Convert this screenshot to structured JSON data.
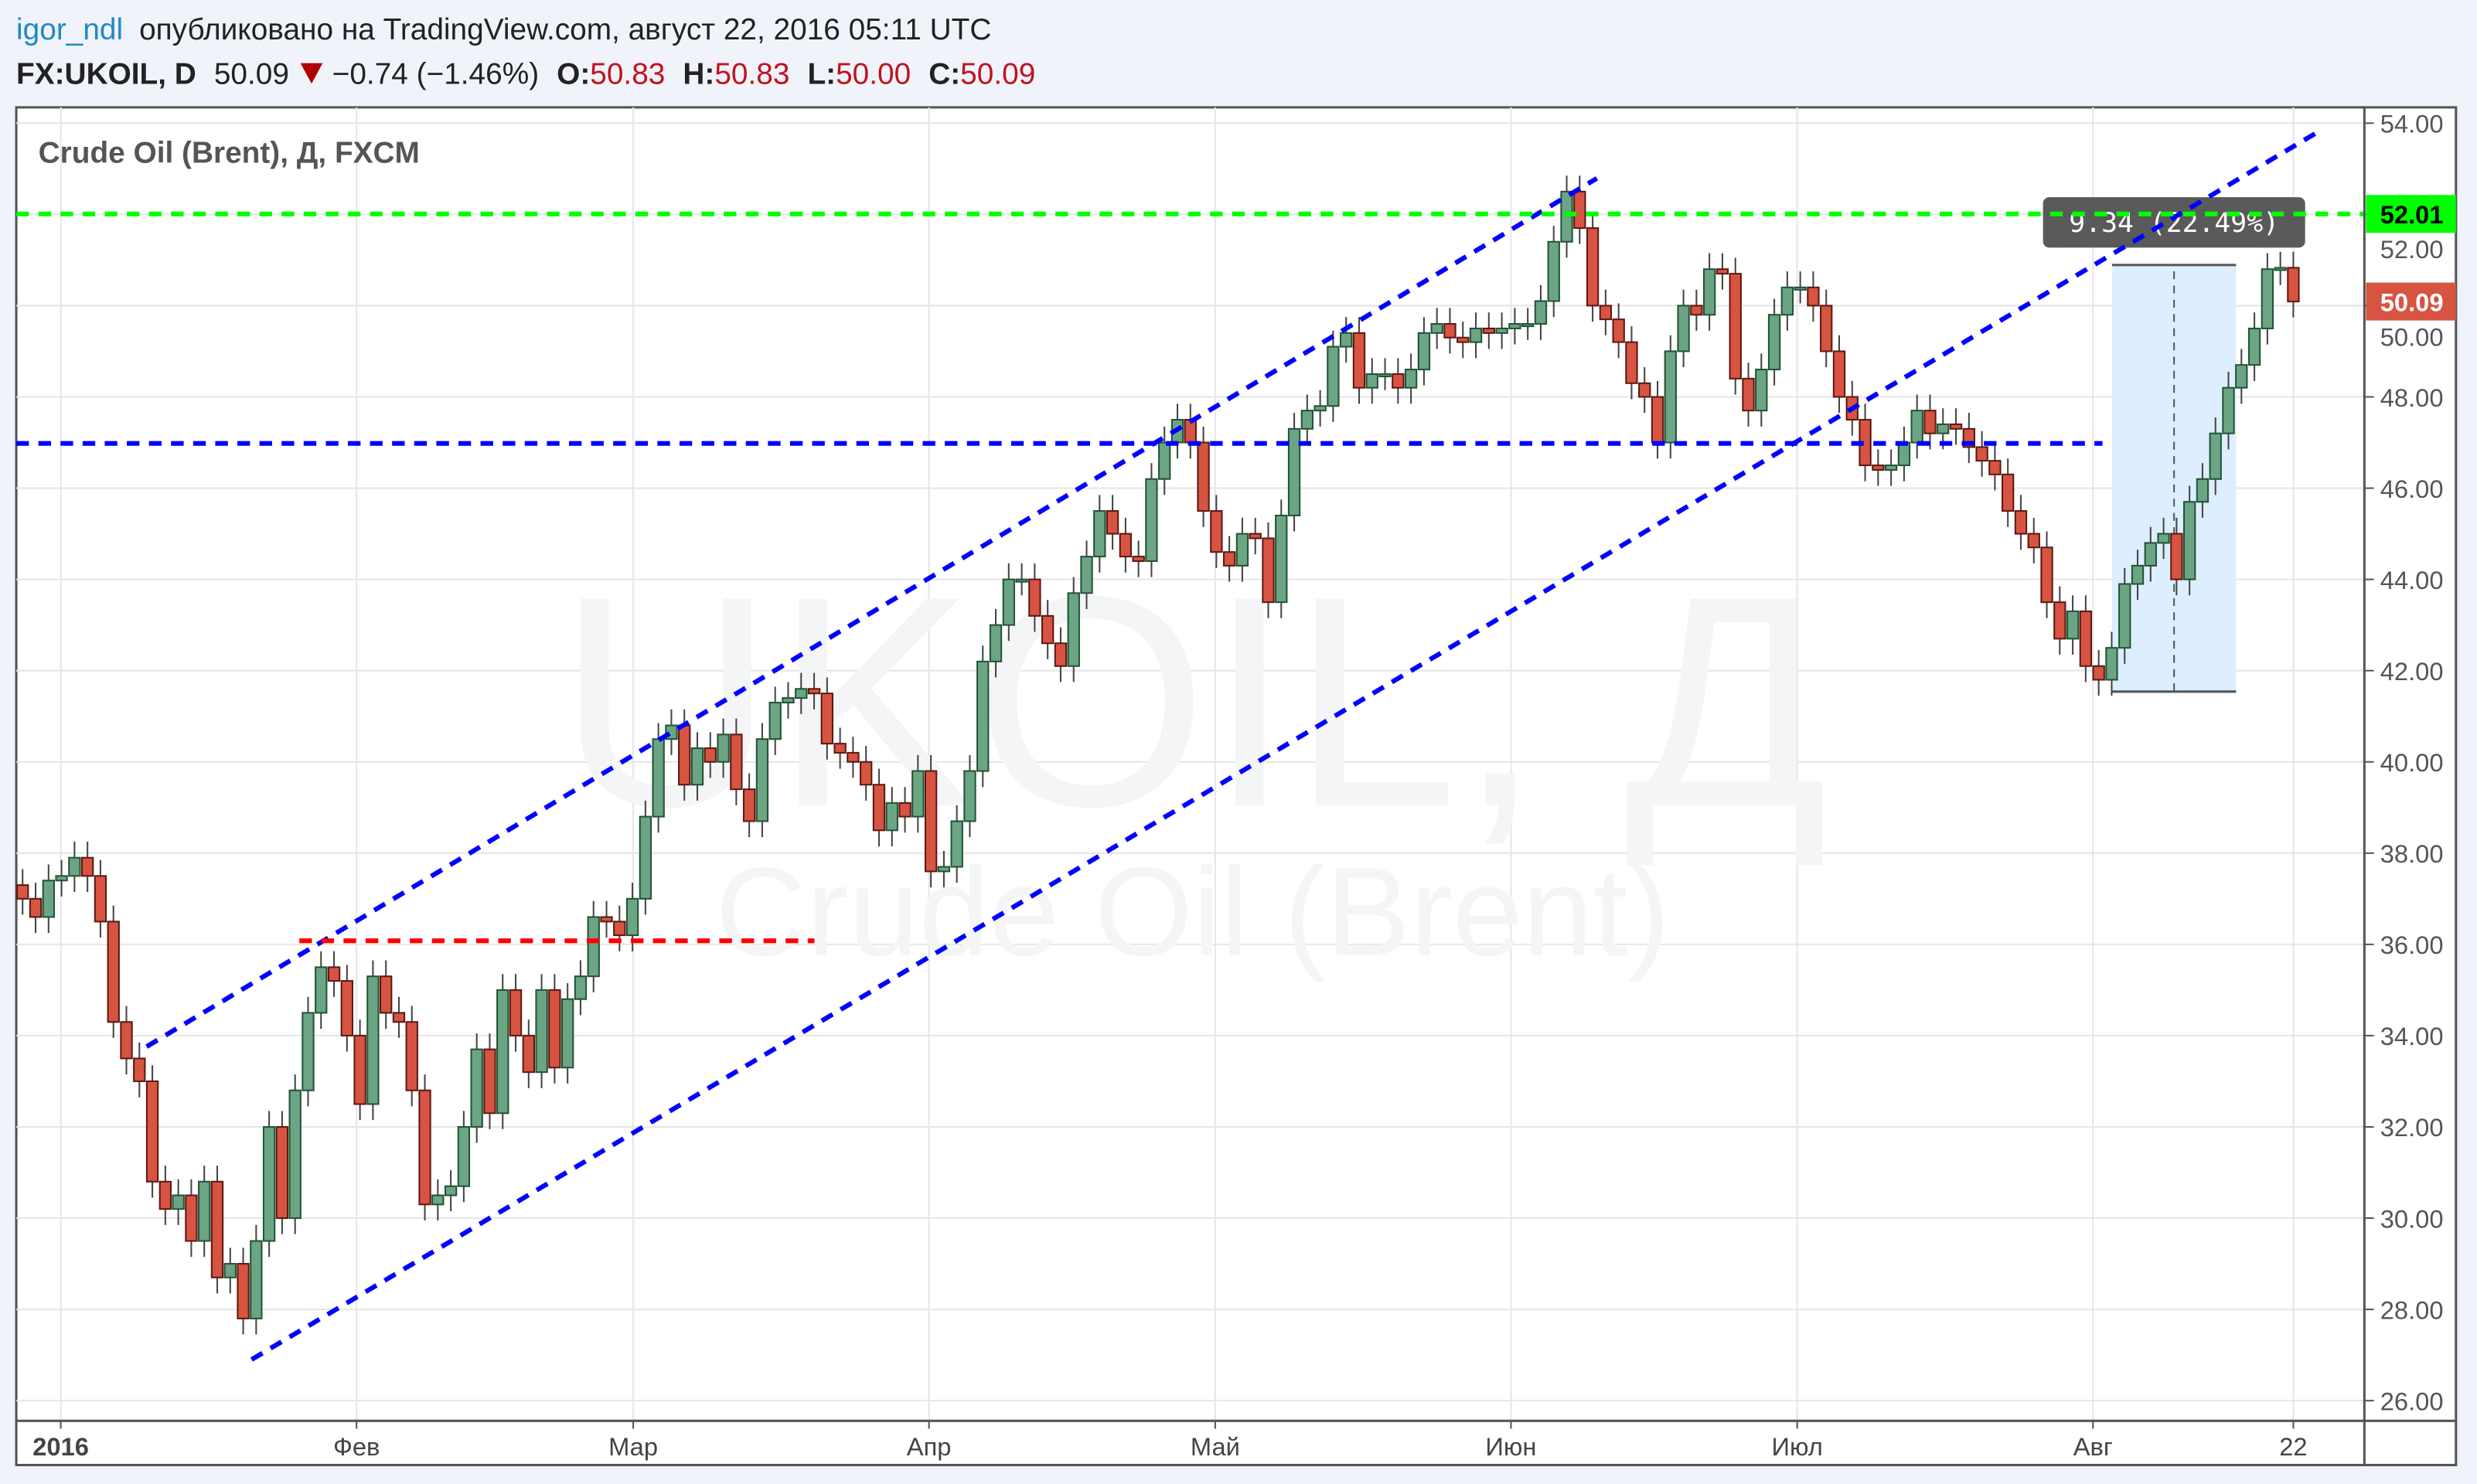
{
  "header": {
    "author": "igor_ndl",
    "published": "опубликовано на TradingView.com, август 22, 2016 05:11 UTC",
    "symbol": "FX:UKOIL, D",
    "last": "50.09",
    "change": "−0.74 (−1.46%)",
    "o_label": "O:",
    "o": "50.83",
    "h_label": "H:",
    "h": "50.83",
    "l_label": "L:",
    "l": "50.00",
    "c_label": "C:",
    "c": "50.09",
    "down_icon": "triangle-down-icon"
  },
  "colors": {
    "up": "#6ba583",
    "down": "#d75442",
    "accent_link": "#1e88c7",
    "value_red": "#c1121f",
    "green_line": "#00ff00",
    "blue_line": "#0000ff",
    "red_line": "#ff0000"
  },
  "chart_data": {
    "type": "candlestick",
    "title": "Crude Oil (Brent), Д, FXCM",
    "watermark": {
      "line1": "UKOIL, Д",
      "line2": "Crude Oil (Brent)"
    },
    "ylim": [
      25.6,
      54.2
    ],
    "xlim": [
      "2015-12-28",
      "2016-08-22"
    ],
    "grid": true,
    "y_ticks": [
      "26.00",
      "28.00",
      "30.00",
      "32.00",
      "34.00",
      "36.00",
      "38.00",
      "40.00",
      "42.00",
      "44.00",
      "46.00",
      "48.00",
      "50.00",
      "52.00",
      "54.00"
    ],
    "x_ticks": [
      {
        "label": "2016",
        "date": "2016-01-01"
      },
      {
        "label": "Фев",
        "date": "2016-02-01"
      },
      {
        "label": "Мар",
        "date": "2016-03-01"
      },
      {
        "label": "Апр",
        "date": "2016-04-01"
      },
      {
        "label": "Май",
        "date": "2016-05-01"
      },
      {
        "label": "Июн",
        "date": "2016-06-01"
      },
      {
        "label": "Июл",
        "date": "2016-07-01"
      },
      {
        "label": "Авг",
        "date": "2016-08-01"
      },
      {
        "label": "22",
        "date": "2016-08-22"
      }
    ],
    "closes": [
      37.0,
      36.6,
      37.4,
      37.5,
      37.9,
      37.5,
      36.5,
      34.3,
      33.5,
      33.0,
      30.8,
      30.2,
      30.5,
      29.5,
      30.8,
      28.7,
      29.0,
      27.8,
      29.5,
      32.0,
      30.0,
      32.8,
      34.5,
      35.5,
      35.2,
      34.0,
      32.5,
      35.3,
      34.5,
      34.3,
      32.8,
      30.3,
      30.5,
      30.7,
      32.0,
      33.7,
      32.3,
      35.0,
      34.0,
      33.2,
      35.0,
      33.3,
      34.8,
      35.3,
      36.6,
      36.5,
      36.2,
      37.0,
      38.8,
      40.5,
      40.8,
      39.5,
      40.3,
      40.0,
      40.6,
      39.4,
      38.7,
      40.5,
      41.3,
      41.4,
      41.6,
      41.5,
      40.4,
      40.2,
      40.0,
      39.5,
      38.5,
      39.1,
      38.8,
      39.8,
      37.6,
      37.7,
      38.7,
      39.8,
      42.2,
      43.0,
      44.0,
      44.0,
      43.2,
      42.6,
      42.1,
      43.7,
      44.5,
      45.5,
      45.0,
      44.5,
      44.4,
      46.2,
      47.0,
      47.5,
      47.0,
      45.5,
      44.6,
      44.3,
      45.0,
      44.9,
      43.5,
      45.4,
      47.3,
      47.7,
      47.8,
      49.1,
      49.4,
      48.2,
      48.5,
      48.5,
      48.2,
      48.6,
      49.4,
      49.6,
      49.3,
      49.2,
      49.5,
      49.4,
      49.5,
      49.6,
      49.6,
      50.1,
      51.4,
      52.5,
      51.7,
      50.0,
      49.7,
      49.2,
      48.3,
      48.0,
      47.0,
      49.0,
      50.0,
      49.8,
      50.8,
      50.7,
      48.4,
      47.7,
      48.6,
      49.8,
      50.4,
      50.4,
      50.0,
      49.0,
      48.0,
      47.5,
      46.5,
      46.4,
      46.5,
      47.0,
      47.7,
      47.2,
      47.4,
      47.3,
      46.9,
      46.6,
      46.3,
      45.5,
      45.0,
      44.7,
      43.5,
      42.7,
      43.3,
      42.1,
      41.8,
      42.5,
      43.9,
      44.3,
      44.8,
      45.0,
      44.0,
      45.7,
      46.2,
      47.2,
      48.2,
      48.7,
      49.5,
      50.8,
      50.83,
      50.09
    ],
    "drawings": [
      {
        "kind": "trend",
        "color": "#0000ff",
        "from": [
          "2016-01-10",
          33.76
        ],
        "to": [
          "2016-06-10",
          52.79
        ]
      },
      {
        "kind": "trend",
        "color": "#0000ff",
        "from": [
          "2016-01-21",
          26.9
        ],
        "to": [
          "2016-08-25",
          53.86
        ]
      },
      {
        "kind": "horizontal",
        "color": "#0000ff",
        "price": 46.98,
        "until": "2016-08-02"
      },
      {
        "kind": "horizontal",
        "color": "#00ff00",
        "price": 52.01
      },
      {
        "kind": "segment",
        "color": "#ff0000",
        "price": 36.08,
        "from": "2016-01-26",
        "to": "2016-03-20"
      }
    ],
    "measure": {
      "from": [
        "2016-08-03",
        41.54
      ],
      "to": [
        "2016-08-16",
        50.89
      ],
      "label": "9.34 (22.49%)"
    },
    "price_labels": [
      {
        "value": "52.01",
        "color": "#00ff00"
      },
      {
        "value": "50.09",
        "color": "#d75442"
      }
    ]
  }
}
